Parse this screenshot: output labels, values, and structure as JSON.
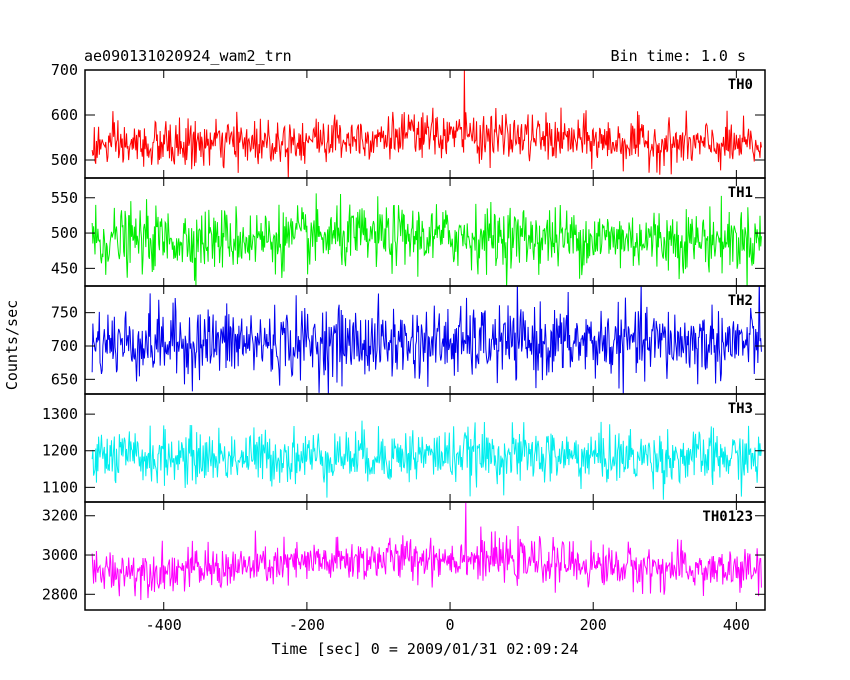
{
  "header": {
    "title": "ae090131020924_wam2_trn",
    "bin_time": "Bin time: 1.0 s"
  },
  "axes": {
    "xlabel": "Time [sec] 0 = 2009/01/31 02:09:24",
    "ylabel": "Counts/sec"
  },
  "chart_data": {
    "type": "line",
    "x_ticks": [
      -400,
      -200,
      0,
      200,
      400
    ],
    "xlim": [
      -510,
      440
    ],
    "x_data_range": [
      -500,
      435
    ],
    "bin_time_s": 1.0,
    "series": [
      {
        "name": "TH0",
        "color": "#ff0000",
        "ylim": [
          460,
          700
        ],
        "yticks": [
          500,
          600,
          700
        ],
        "mean": 530,
        "noise": 26,
        "hump_peak": 25,
        "hump_center": -20,
        "spike": {
          "x": 20,
          "y": 700
        }
      },
      {
        "name": "TH1",
        "color": "#00ee00",
        "ylim": [
          425,
          578
        ],
        "yticks": [
          450,
          500,
          550
        ],
        "mean": 490,
        "noise": 22,
        "hump_peak": 5,
        "hump_center": -20,
        "spike": null
      },
      {
        "name": "TH2",
        "color": "#0000ee",
        "ylim": [
          628,
          790
        ],
        "yticks": [
          650,
          700,
          750
        ],
        "mean": 705,
        "noise": 27,
        "hump_peak": 0,
        "hump_center": 0,
        "spike": null
      },
      {
        "name": "TH3",
        "color": "#00eeee",
        "ylim": [
          1060,
          1355
        ],
        "yticks": [
          1100,
          1200,
          1300
        ],
        "mean": 1180,
        "noise": 37,
        "hump_peak": 8,
        "hump_center": -20,
        "spike": null
      },
      {
        "name": "TH0123",
        "color": "#ff00ff",
        "ylim": [
          2720,
          3270
        ],
        "yticks": [
          2800,
          3000,
          3200
        ],
        "mean": 2915,
        "noise": 55,
        "hump_peak": 70,
        "hump_center": -20,
        "spike": {
          "x": 22,
          "y": 3270
        }
      }
    ]
  }
}
